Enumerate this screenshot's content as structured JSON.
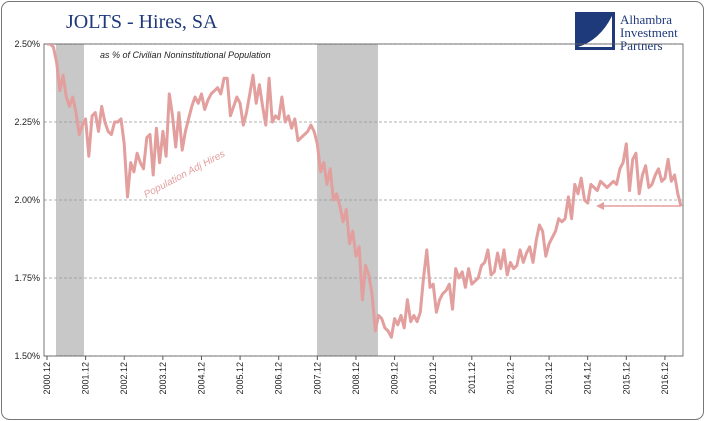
{
  "chart_data": {
    "type": "line",
    "title": "JOLTS - Hires, SA",
    "subtitle": "as % of Civilian Noninstitutional Population",
    "annotations": [
      "Population Adj Hires"
    ],
    "logo": [
      "Alhambra",
      "Investment",
      "Partners"
    ],
    "categories": [
      "2000.12",
      null,
      null,
      null,
      null,
      null,
      null,
      null,
      null,
      null,
      null,
      null,
      "2001.12",
      null,
      null,
      null,
      null,
      null,
      null,
      null,
      null,
      null,
      null,
      null,
      "2002.12",
      null,
      null,
      null,
      null,
      null,
      null,
      null,
      null,
      null,
      null,
      null,
      "2003.12",
      null,
      null,
      null,
      null,
      null,
      null,
      null,
      null,
      null,
      null,
      null,
      "2004.12",
      null,
      null,
      null,
      null,
      null,
      null,
      null,
      null,
      null,
      null,
      null,
      "2005.12",
      null,
      null,
      null,
      null,
      null,
      null,
      null,
      null,
      null,
      null,
      null,
      "2006.12",
      null,
      null,
      null,
      null,
      null,
      null,
      null,
      null,
      null,
      null,
      null,
      "2007.12",
      null,
      null,
      null,
      null,
      null,
      null,
      null,
      null,
      null,
      null,
      null,
      "2008.12",
      null,
      null,
      null,
      null,
      null,
      null,
      null,
      null,
      null,
      null,
      null,
      "2009.12",
      null,
      null,
      null,
      null,
      null,
      null,
      null,
      null,
      null,
      null,
      null,
      "2010.12",
      null,
      null,
      null,
      null,
      null,
      null,
      null,
      null,
      null,
      null,
      null,
      "2011.12",
      null,
      null,
      null,
      null,
      null,
      null,
      null,
      null,
      null,
      null,
      null,
      "2012.12",
      null,
      null,
      null,
      null,
      null,
      null,
      null,
      null,
      null,
      null,
      null,
      "2013.12",
      null,
      null,
      null,
      null,
      null,
      null,
      null,
      null,
      null,
      null,
      null,
      "2014.12",
      null,
      null,
      null,
      null,
      null,
      null,
      null,
      null,
      null,
      null,
      null,
      "2015.12",
      null,
      null,
      null,
      null,
      null,
      null,
      null,
      null,
      null,
      null,
      null,
      "2016.12",
      null,
      null,
      null,
      null,
      null
    ],
    "series": [
      {
        "name": "Population Adj Hires",
        "color": "#e39e9e",
        "values": [
          2.5,
          2.5,
          2.49,
          2.44,
          2.35,
          2.4,
          2.33,
          2.3,
          2.33,
          2.28,
          2.21,
          2.24,
          2.26,
          2.14,
          2.27,
          2.28,
          2.22,
          2.3,
          2.25,
          2.22,
          2.21,
          2.25,
          2.25,
          2.26,
          2.18,
          2.01,
          2.12,
          2.09,
          2.15,
          2.12,
          2.1,
          2.2,
          2.21,
          2.08,
          2.23,
          2.12,
          2.22,
          2.14,
          2.34,
          2.27,
          2.17,
          2.28,
          2.16,
          2.22,
          2.26,
          2.3,
          2.33,
          2.31,
          2.34,
          2.29,
          2.32,
          2.34,
          2.35,
          2.36,
          2.34,
          2.39,
          2.39,
          2.27,
          2.3,
          2.33,
          2.31,
          2.24,
          2.28,
          2.34,
          2.4,
          2.31,
          2.37,
          2.3,
          2.24,
          2.39,
          2.25,
          2.27,
          2.26,
          2.33,
          2.25,
          2.27,
          2.23,
          2.26,
          2.19,
          2.2,
          2.21,
          2.22,
          2.24,
          2.22,
          2.18,
          2.09,
          2.12,
          2.05,
          2.1,
          2.0,
          2.02,
          1.98,
          1.93,
          1.97,
          1.86,
          1.9,
          1.82,
          1.85,
          1.68,
          1.79,
          1.76,
          1.7,
          1.58,
          1.63,
          1.62,
          1.59,
          1.58,
          1.56,
          1.62,
          1.6,
          1.63,
          1.59,
          1.68,
          1.61,
          1.63,
          1.61,
          1.64,
          1.75,
          1.84,
          1.72,
          1.73,
          1.64,
          1.68,
          1.7,
          1.71,
          1.73,
          1.65,
          1.78,
          1.75,
          1.77,
          1.72,
          1.78,
          1.73,
          1.74,
          1.75,
          1.79,
          1.8,
          1.84,
          1.76,
          1.77,
          1.83,
          1.78,
          1.84,
          1.76,
          1.8,
          1.78,
          1.79,
          1.84,
          1.8,
          1.83,
          1.85,
          1.8,
          1.87,
          1.92,
          1.9,
          1.82,
          1.86,
          1.88,
          1.9,
          1.94,
          1.93,
          1.94,
          2.01,
          1.94,
          2.05,
          2.02,
          2.07,
          2.0,
          1.99,
          2.05,
          2.04,
          2.03,
          2.06,
          2.05,
          2.04,
          2.05,
          2.06,
          2.05,
          2.1,
          2.12,
          2.18,
          2.03,
          2.13,
          2.15,
          2.02,
          2.08,
          2.11,
          2.04,
          2.05,
          2.08,
          2.1,
          2.06,
          2.07,
          2.13,
          2.06,
          2.08,
          2.02,
          1.98
        ]
      }
    ],
    "ylim": [
      1.5,
      2.5
    ],
    "yticks": [
      {
        "value": 1.5,
        "label": "1.50%"
      },
      {
        "value": 1.75,
        "label": "1.75%"
      },
      {
        "value": 2.0,
        "label": "2.00%"
      },
      {
        "value": 2.25,
        "label": "2.25%"
      },
      {
        "value": 2.5,
        "label": "2.50%"
      }
    ],
    "grid": true
  }
}
